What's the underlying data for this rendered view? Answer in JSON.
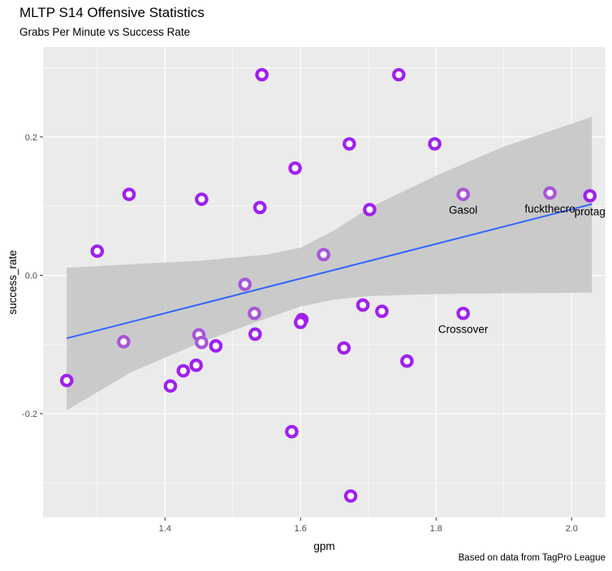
{
  "chart_data": {
    "type": "scatter",
    "title": "MLTP S14 Offensive Statistics",
    "subtitle": "Grabs Per Minute vs Success Rate",
    "caption": "Based on data from TagPro League",
    "xlabel": "gpm",
    "ylabel": "success_rate",
    "xlim": [
      1.22,
      2.05
    ],
    "ylim": [
      -0.35,
      0.33
    ],
    "x_ticks": [
      1.4,
      1.6,
      1.8,
      2.0
    ],
    "x_tick_labels": [
      "1.4",
      "1.6",
      "1.8",
      "2.0"
    ],
    "y_ticks": [
      -0.2,
      0.0,
      0.2
    ],
    "y_tick_labels": [
      "-0.2",
      "0.0",
      "0.2"
    ],
    "grid": true,
    "point_color": "#a020f0",
    "point_color_light": "#a855d8",
    "trend_color": "#3366ff",
    "band_color": "#c4c4c4",
    "panel_color": "#ebebeb",
    "trend": {
      "x": [
        1.255,
        2.03
      ],
      "y": [
        -0.091,
        0.103
      ],
      "band_upper": [
        [
          1.255,
          0.011
        ],
        [
          1.35,
          0.016
        ],
        [
          1.45,
          0.021
        ],
        [
          1.55,
          0.03
        ],
        [
          1.6,
          0.04
        ],
        [
          1.65,
          0.065
        ],
        [
          1.7,
          0.097
        ],
        [
          1.8,
          0.144
        ],
        [
          1.9,
          0.186
        ],
        [
          2.03,
          0.229
        ]
      ],
      "band_lower": [
        [
          1.255,
          -0.195
        ],
        [
          1.35,
          -0.14
        ],
        [
          1.45,
          -0.098
        ],
        [
          1.55,
          -0.062
        ],
        [
          1.6,
          -0.045
        ],
        [
          1.65,
          -0.035
        ],
        [
          1.7,
          -0.03
        ],
        [
          1.8,
          -0.027
        ],
        [
          1.9,
          -0.026
        ],
        [
          2.03,
          -0.025
        ]
      ]
    },
    "points": [
      {
        "x": 1.543,
        "y": 0.29,
        "shade": "dark"
      },
      {
        "x": 1.745,
        "y": 0.29,
        "shade": "dark"
      },
      {
        "x": 1.672,
        "y": 0.19,
        "shade": "dark"
      },
      {
        "x": 1.798,
        "y": 0.19,
        "shade": "dark"
      },
      {
        "x": 1.592,
        "y": 0.155,
        "shade": "dark"
      },
      {
        "x": 1.347,
        "y": 0.117,
        "shade": "dark"
      },
      {
        "x": 1.454,
        "y": 0.11,
        "shade": "dark"
      },
      {
        "x": 1.54,
        "y": 0.098,
        "shade": "dark"
      },
      {
        "x": 1.702,
        "y": 0.095,
        "shade": "dark"
      },
      {
        "x": 1.84,
        "y": 0.117,
        "shade": "light",
        "label": "Gasol"
      },
      {
        "x": 1.968,
        "y": 0.119,
        "shade": "light",
        "label": "fuckthecro"
      },
      {
        "x": 2.027,
        "y": 0.115,
        "shade": "dark",
        "label": "protag"
      },
      {
        "x": 1.3,
        "y": 0.035,
        "shade": "dark"
      },
      {
        "x": 1.634,
        "y": 0.03,
        "shade": "light"
      },
      {
        "x": 1.518,
        "y": -0.013,
        "shade": "light"
      },
      {
        "x": 1.532,
        "y": -0.055,
        "shade": "light"
      },
      {
        "x": 1.692,
        "y": -0.043,
        "shade": "dark"
      },
      {
        "x": 1.72,
        "y": -0.052,
        "shade": "dark"
      },
      {
        "x": 1.84,
        "y": -0.055,
        "shade": "dark",
        "label": "Crossover"
      },
      {
        "x": 1.602,
        "y": -0.064,
        "shade": "dark"
      },
      {
        "x": 1.6,
        "y": -0.068,
        "shade": "dark"
      },
      {
        "x": 1.533,
        "y": -0.085,
        "shade": "dark"
      },
      {
        "x": 1.339,
        "y": -0.096,
        "shade": "light"
      },
      {
        "x": 1.45,
        "y": -0.086,
        "shade": "light"
      },
      {
        "x": 1.454,
        "y": -0.097,
        "shade": "light"
      },
      {
        "x": 1.475,
        "y": -0.102,
        "shade": "dark"
      },
      {
        "x": 1.664,
        "y": -0.105,
        "shade": "dark"
      },
      {
        "x": 1.757,
        "y": -0.124,
        "shade": "dark"
      },
      {
        "x": 1.446,
        "y": -0.13,
        "shade": "dark"
      },
      {
        "x": 1.427,
        "y": -0.138,
        "shade": "dark"
      },
      {
        "x": 1.255,
        "y": -0.152,
        "shade": "dark"
      },
      {
        "x": 1.408,
        "y": -0.16,
        "shade": "dark"
      },
      {
        "x": 1.587,
        "y": -0.226,
        "shade": "dark"
      },
      {
        "x": 1.674,
        "y": -0.319,
        "shade": "dark"
      }
    ]
  }
}
